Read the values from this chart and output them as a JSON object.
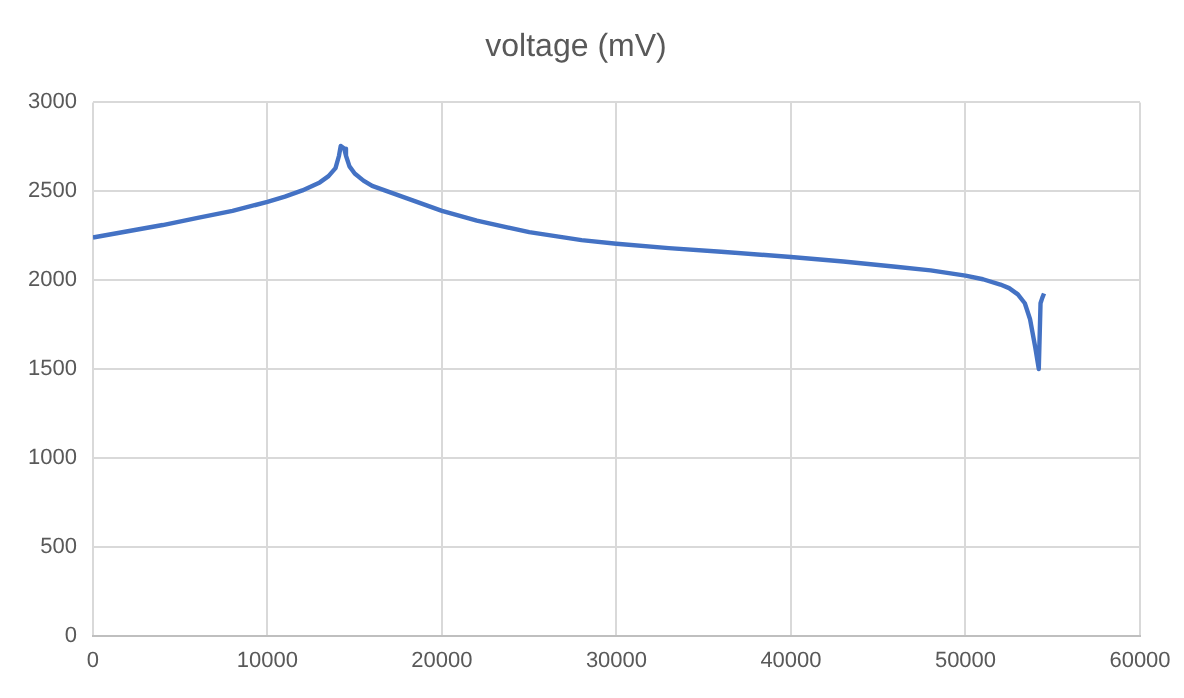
{
  "chart_data": {
    "type": "line",
    "title": "voltage (mV)",
    "series": [
      {
        "color": "#4472c4",
        "x": [
          0,
          2000,
          4000,
          6000,
          8000,
          10000,
          11000,
          12000,
          13000,
          13500,
          13900,
          14100,
          14200,
          14400,
          14500,
          14700,
          15000,
          15500,
          16000,
          18000,
          20000,
          22000,
          25000,
          28000,
          30000,
          33000,
          36000,
          40000,
          43000,
          46000,
          48000,
          50000,
          51000,
          52000,
          52500,
          53000,
          53400,
          53700,
          54000,
          54200,
          54300,
          54400,
          54500
        ],
        "values": [
          2240,
          2275,
          2310,
          2350,
          2390,
          2440,
          2470,
          2505,
          2550,
          2585,
          2630,
          2700,
          2755,
          2740,
          2700,
          2640,
          2600,
          2560,
          2530,
          2460,
          2390,
          2335,
          2270,
          2225,
          2205,
          2180,
          2160,
          2130,
          2105,
          2075,
          2055,
          2025,
          2005,
          1975,
          1955,
          1920,
          1870,
          1780,
          1620,
          1500,
          1870,
          1900,
          1925
        ]
      }
    ],
    "xlim": [
      0,
      60000
    ],
    "xticks": [
      0,
      10000,
      20000,
      30000,
      40000,
      50000,
      60000
    ],
    "ylim": [
      0,
      3000
    ],
    "yticks": [
      0,
      500,
      1000,
      1500,
      2000,
      2500,
      3000
    ],
    "grid": true,
    "marker": "none",
    "line_style": "solid"
  }
}
